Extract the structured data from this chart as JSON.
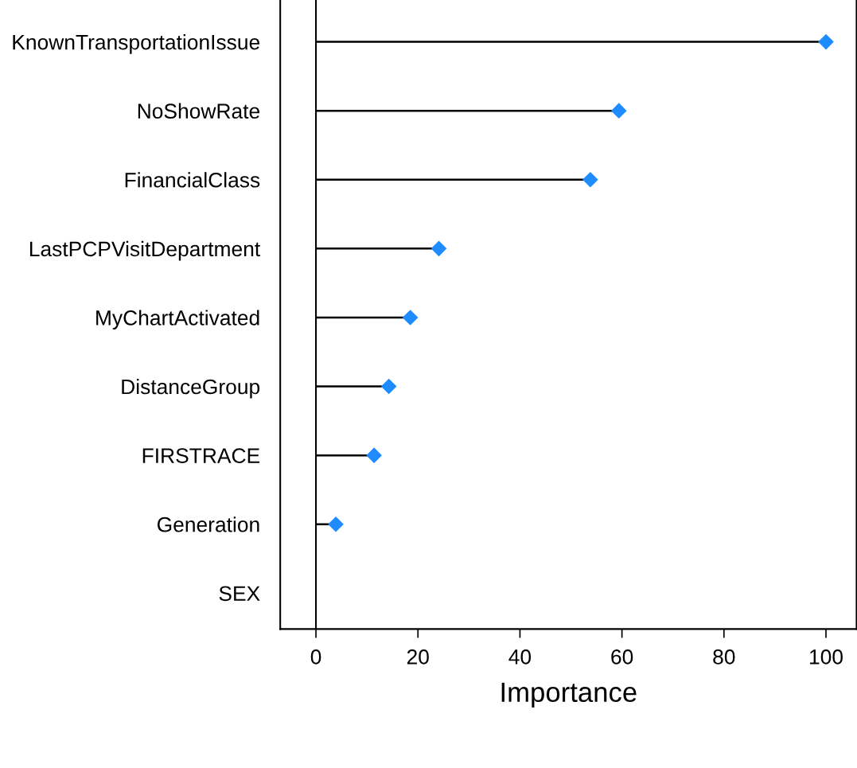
{
  "chart_data": {
    "type": "lollipop",
    "orientation": "horizontal",
    "xlabel": "Importance",
    "categories": [
      "KnownTransportationIssue",
      "NoShowRate",
      "FinancialClass",
      "LastPCPVisitDepartment",
      "MyChartActivated",
      "DistanceGroup",
      "FIRSTRACE",
      "Generation",
      "SEX"
    ],
    "values": [
      100,
      59.4,
      53.8,
      24.1,
      18.5,
      14.3,
      11.4,
      3.9,
      null
    ],
    "color": "#1e8cff",
    "marker": "diamond",
    "xlim": [
      -7,
      106
    ],
    "xticks": [
      0,
      20,
      40,
      60,
      80,
      100
    ],
    "grid": false,
    "legend": false
  }
}
